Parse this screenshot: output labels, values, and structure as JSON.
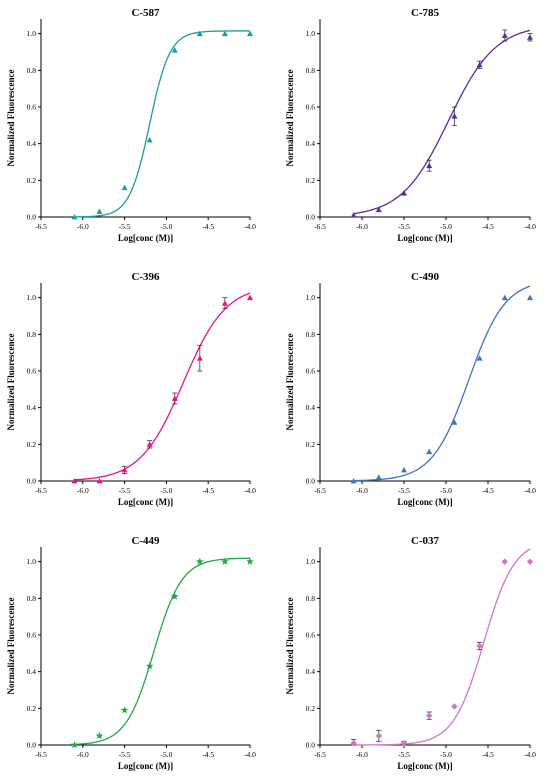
{
  "chart_data": [
    {
      "type": "scatter",
      "title": "C-587",
      "xlabel": "Log[conc (M)]",
      "ylabel": "Normalized Fluorescence",
      "xlim": [
        -6.5,
        -4.0
      ],
      "ylim": [
        0.0,
        1.0
      ],
      "xticks": [
        "-6.5",
        "-6.0",
        "-5.5",
        "-5.0",
        "-4.5",
        "-4.0"
      ],
      "yticks": [
        "0.0",
        "0.2",
        "0.4",
        "0.6",
        "0.8",
        "1.0"
      ],
      "color": "#1a9e9a",
      "marker": "triangle",
      "x": [
        -6.1,
        -5.8,
        -5.5,
        -5.2,
        -4.9,
        -4.6,
        -4.3,
        -4.0
      ],
      "y": [
        0.0,
        0.03,
        0.16,
        0.42,
        0.91,
        1.0,
        1.0,
        1.0
      ],
      "err": [
        0,
        0,
        0,
        0,
        0,
        0,
        0,
        0
      ],
      "fit": {
        "bottom": 0.0,
        "top": 1.015,
        "logEC50": -5.2,
        "hill": 3.6
      }
    },
    {
      "type": "scatter",
      "title": "C-785",
      "xlabel": "Log[conc (M)]",
      "ylabel": "Normalized Fluorescence",
      "xlim": [
        -6.5,
        -4.0
      ],
      "ylim": [
        0.0,
        1.0
      ],
      "xticks": [
        "-6.5",
        "-6.0",
        "-5.5",
        "-5.0",
        "-4.5",
        "-4.0"
      ],
      "yticks": [
        "0.0",
        "0.2",
        "0.4",
        "0.6",
        "0.8",
        "1.0"
      ],
      "color": "#5b2c9e",
      "marker": "triangle",
      "x": [
        -6.1,
        -5.8,
        -5.5,
        -5.2,
        -4.9,
        -4.6,
        -4.3,
        -4.0
      ],
      "y": [
        0.01,
        0.04,
        0.13,
        0.28,
        0.55,
        0.83,
        0.99,
        0.98
      ],
      "err": [
        0,
        0,
        0,
        0.03,
        0.05,
        0.02,
        0.03,
        0.02
      ],
      "fit": {
        "bottom": 0.0,
        "top": 1.05,
        "logEC50": -4.97,
        "hill": 1.55
      }
    },
    {
      "type": "scatter",
      "title": "C-396",
      "xlabel": "Log[conc (M)]",
      "ylabel": "Normalized Fluorescence",
      "xlim": [
        -6.5,
        -4.0
      ],
      "ylim": [
        0.0,
        1.0
      ],
      "xticks": [
        "-6.5",
        "-6.0",
        "-5.5",
        "-5.0",
        "-4.5",
        "-4.0"
      ],
      "yticks": [
        "0.0",
        "0.2",
        "0.4",
        "0.6",
        "0.8",
        "1.0"
      ],
      "color": "#e8128a",
      "marker": "triangle",
      "x": [
        -6.1,
        -5.8,
        -5.5,
        -5.2,
        -4.9,
        -4.6,
        -4.3,
        -4.0
      ],
      "y": [
        0.0,
        0.0,
        0.06,
        0.2,
        0.45,
        0.67,
        0.97,
        1.0
      ],
      "err": [
        0,
        0,
        0.02,
        0.02,
        0.03,
        0.07,
        0.03,
        0
      ],
      "fit": {
        "bottom": 0.0,
        "top": 1.07,
        "logEC50": -4.8,
        "hill": 1.7
      }
    },
    {
      "type": "scatter",
      "title": "C-490",
      "xlabel": "Log[conc (M)]",
      "ylabel": "Normalized Fluorescence",
      "xlim": [
        -6.5,
        -4.0
      ],
      "ylim": [
        0.0,
        1.0
      ],
      "xticks": [
        "-6.5",
        "-6.0",
        "-5.5",
        "-5.0",
        "-4.5",
        "-4.0"
      ],
      "yticks": [
        "0.0",
        "0.2",
        "0.4",
        "0.6",
        "0.8",
        "1.0"
      ],
      "color": "#3f72c4",
      "marker": "triangle",
      "x": [
        -6.1,
        -5.8,
        -5.5,
        -5.2,
        -4.9,
        -4.6,
        -4.3,
        -4.0
      ],
      "y": [
        0.0,
        0.02,
        0.06,
        0.16,
        0.32,
        0.67,
        1.0,
        1.0
      ],
      "err": [
        0,
        0,
        0,
        0,
        0,
        0,
        0,
        0
      ],
      "fit": {
        "bottom": 0.0,
        "top": 1.1,
        "logEC50": -4.73,
        "hill": 2.0
      }
    },
    {
      "type": "scatter",
      "title": "C-449",
      "xlabel": "Log[conc (M)]",
      "ylabel": "Normalized Fluorescence",
      "xlim": [
        -6.5,
        -4.0
      ],
      "ylim": [
        0.0,
        1.0
      ],
      "xticks": [
        "-6.5",
        "-6.0",
        "-5.5",
        "-5.0",
        "-4.5",
        "-4.0"
      ],
      "yticks": [
        "0.0",
        "0.2",
        "0.4",
        "0.6",
        "0.8",
        "1.0"
      ],
      "color": "#22a84a",
      "marker": "star",
      "x": [
        -6.1,
        -5.8,
        -5.5,
        -5.2,
        -4.9,
        -4.6,
        -4.3,
        -4.0
      ],
      "y": [
        0.0,
        0.05,
        0.19,
        0.43,
        0.81,
        1.0,
        1.0,
        1.0
      ],
      "err": [
        0,
        0,
        0,
        0,
        0,
        0,
        0,
        0
      ],
      "fit": {
        "bottom": 0.0,
        "top": 1.02,
        "logEC50": -5.15,
        "hill": 2.6
      }
    },
    {
      "type": "scatter",
      "title": "C-037",
      "xlabel": "Log[conc (M)]",
      "ylabel": "Normalized Fluorescence",
      "xlim": [
        -6.5,
        -4.0
      ],
      "ylim": [
        0.0,
        1.0
      ],
      "xticks": [
        "-6.5",
        "-6.0",
        "-5.5",
        "-5.0",
        "-4.5",
        "-4.0"
      ],
      "yticks": [
        "0.0",
        "0.2",
        "0.4",
        "0.6",
        "0.8",
        "1.0"
      ],
      "color": "#d274c4",
      "marker": "diamond",
      "x": [
        -6.1,
        -5.8,
        -5.5,
        -5.2,
        -4.9,
        -4.6,
        -4.3,
        -4.0
      ],
      "y": [
        0.01,
        0.05,
        0.01,
        0.16,
        0.21,
        0.54,
        1.0,
        1.0
      ],
      "err": [
        0.02,
        0.03,
        0.01,
        0.02,
        0,
        0.02,
        0,
        0
      ],
      "fit": {
        "bottom": 0.0,
        "top": 1.12,
        "logEC50": -4.55,
        "hill": 2.4
      }
    }
  ]
}
